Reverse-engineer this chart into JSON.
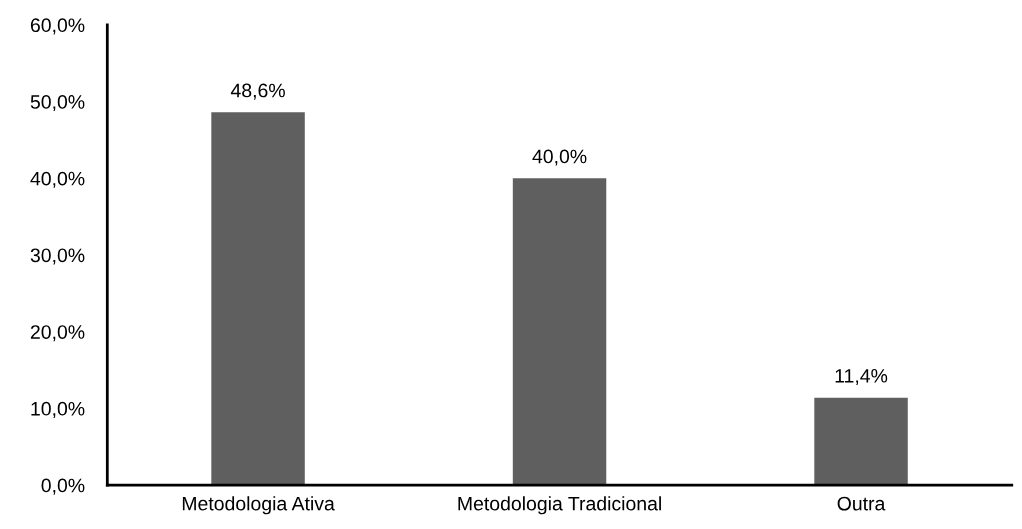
{
  "chart_data": {
    "type": "bar",
    "categories": [
      "Metodologia Ativa",
      "Metodologia Tradicional",
      "Outra"
    ],
    "values": [
      48.6,
      40.0,
      11.4
    ],
    "value_labels": [
      "48,6%",
      "40,0%",
      "11,4%"
    ],
    "color": "#5f5f5f",
    "ylim": [
      0,
      60
    ],
    "yticks": [
      {
        "value": 0,
        "label": "0,0%"
      },
      {
        "value": 10,
        "label": "10,0%"
      },
      {
        "value": 20,
        "label": "20,0%"
      },
      {
        "value": 30,
        "label": "30,0%"
      },
      {
        "value": 40,
        "label": "40,0%"
      },
      {
        "value": 50,
        "label": "50,0%"
      },
      {
        "value": 60,
        "label": "60,0%"
      }
    ],
    "grid": false,
    "legend": false
  }
}
